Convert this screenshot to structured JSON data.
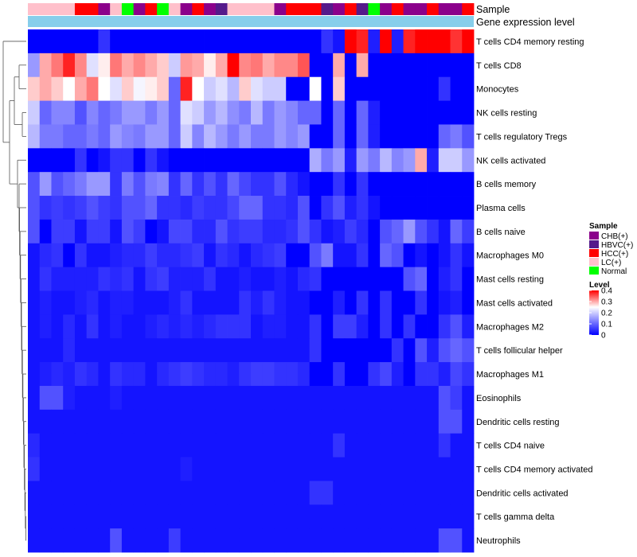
{
  "chart_data": {
    "type": "heatmap",
    "title": "",
    "annotation_tracks": [
      "Sample",
      "Gene expression level"
    ],
    "sample_groups": [
      {
        "name": "CHB(+)",
        "color": "#8B008B"
      },
      {
        "name": "HBVC(+)",
        "color": "#551A8B"
      },
      {
        "name": "HCC(+)",
        "color": "#FF0000"
      },
      {
        "name": "LC(+)",
        "color": "#FFC0CB"
      },
      {
        "name": "Normal",
        "color": "#00FF00"
      }
    ],
    "gene_expression_level_color": "#87CEEB",
    "columns_sample": [
      "LC(+)",
      "LC(+)",
      "LC(+)",
      "LC(+)",
      "HCC(+)",
      "HCC(+)",
      "CHB(+)",
      "LC(+)",
      "Normal",
      "CHB(+)",
      "HCC(+)",
      "Normal",
      "LC(+)",
      "CHB(+)",
      "HCC(+)",
      "CHB(+)",
      "HBVC(+)",
      "LC(+)",
      "LC(+)",
      "LC(+)",
      "LC(+)",
      "CHB(+)",
      "HCC(+)",
      "HCC(+)",
      "HCC(+)",
      "HBVC(+)",
      "CHB(+)",
      "HCC(+)",
      "HBVC(+)",
      "Normal",
      "CHB(+)",
      "HCC(+)",
      "CHB(+)",
      "CHB(+)",
      "HCC(+)",
      "CHB(+)",
      "CHB(+)",
      "HCC(+)"
    ],
    "rows": [
      "T cells CD4 memory resting",
      "T cells CD8",
      "Monocytes",
      "NK cells resting",
      "T cells regulatory  Tregs",
      "NK cells activated",
      "B cells memory",
      "Plasma cells",
      "B cells naive",
      "Macrophages M0",
      "Mast cells resting",
      "Mast cells activated",
      "Macrophages M2",
      "T cells follicular helper",
      "Macrophages M1",
      "Eosinophils",
      "Dendritic cells resting",
      "T cells CD4 naive",
      "T cells CD4 memory activated",
      "Dendritic cells activated",
      "T cells gamma delta",
      "Neutrophils"
    ],
    "values": [
      [
        0,
        0,
        0,
        0,
        0,
        0,
        0.05,
        0,
        0,
        0,
        0,
        0,
        0,
        0,
        0,
        0,
        0,
        0,
        0,
        0,
        0,
        0,
        0,
        0,
        0,
        0.05,
        0.02,
        0.4,
        0.38,
        0.03,
        0.4,
        0.03,
        0.38,
        0.4,
        0.4,
        0.4,
        0.37,
        0.4
      ],
      [
        0.15,
        0.3,
        0.33,
        0.38,
        0.32,
        0.22,
        0.26,
        0.33,
        0.3,
        0.32,
        0.3,
        0.28,
        0.2,
        0.31,
        0.3,
        0.26,
        0.3,
        0.4,
        0.32,
        0.33,
        0.3,
        0.32,
        0.32,
        0.35,
        0.0,
        0.0,
        0.3,
        0.0,
        0.3,
        0.0,
        0,
        0,
        0,
        0,
        0,
        0,
        0,
        0
      ],
      [
        0.28,
        0.3,
        0.28,
        0.25,
        0.3,
        0.33,
        0.25,
        0.22,
        0.28,
        0.24,
        0.26,
        0.28,
        0.1,
        0.38,
        0.25,
        0.2,
        0.22,
        0.18,
        0.28,
        0.22,
        0.2,
        0.2,
        0.0,
        0.0,
        0.25,
        0.0,
        0.28,
        0.0,
        0,
        0,
        0,
        0,
        0,
        0,
        0,
        0.05,
        0,
        0
      ],
      [
        0.2,
        0.1,
        0.13,
        0.13,
        0.08,
        0.13,
        0.1,
        0.12,
        0.15,
        0.15,
        0.12,
        0.15,
        0.1,
        0.22,
        0.2,
        0.15,
        0.18,
        0.14,
        0.12,
        0.18,
        0.12,
        0.15,
        0.13,
        0.1,
        0.1,
        0.0,
        0.1,
        0.0,
        0.1,
        0.03,
        0,
        0,
        0,
        0,
        0,
        0,
        0,
        0
      ],
      [
        0.18,
        0.12,
        0.12,
        0.1,
        0.1,
        0.12,
        0.1,
        0.15,
        0.13,
        0.12,
        0.15,
        0.15,
        0.1,
        0.2,
        0.13,
        0.18,
        0.15,
        0.12,
        0.15,
        0.12,
        0.12,
        0.15,
        0.13,
        0.15,
        0.0,
        0.0,
        0.1,
        0.0,
        0.1,
        0.03,
        0.0,
        0.0,
        0,
        0,
        0,
        0.1,
        0.12,
        0.08
      ],
      [
        0,
        0,
        0,
        0,
        0.05,
        0,
        0.02,
        0.05,
        0.05,
        0,
        0.05,
        0.02,
        0,
        0,
        0,
        0,
        0,
        0,
        0,
        0,
        0,
        0,
        0,
        0,
        0.17,
        0.12,
        0.15,
        0.03,
        0.15,
        0.12,
        0.18,
        0.13,
        0.15,
        0.3,
        0.03,
        0.2,
        0.2,
        0.15
      ],
      [
        0.08,
        0.15,
        0.08,
        0.1,
        0.12,
        0.15,
        0.15,
        0.05,
        0.12,
        0.08,
        0.12,
        0.13,
        0.05,
        0.1,
        0.05,
        0.08,
        0.05,
        0.1,
        0.07,
        0.05,
        0.05,
        0.08,
        0.04,
        0.02,
        0.0,
        0.0,
        0.05,
        0.0,
        0.05,
        0.0,
        0,
        0,
        0,
        0,
        0,
        0,
        0,
        0
      ],
      [
        0.08,
        0.05,
        0.06,
        0.05,
        0.06,
        0.08,
        0.06,
        0.05,
        0.08,
        0.08,
        0.1,
        0.05,
        0.05,
        0.04,
        0.06,
        0.05,
        0.05,
        0.07,
        0.1,
        0.1,
        0.05,
        0.05,
        0.04,
        0.08,
        0.0,
        0.05,
        0.08,
        0.03,
        0.05,
        0.02,
        0,
        0,
        0,
        0,
        0,
        0,
        0,
        0
      ],
      [
        0.08,
        0.0,
        0.06,
        0.06,
        0.02,
        0.06,
        0.06,
        0.02,
        0.08,
        0.06,
        0.0,
        0.02,
        0.07,
        0.07,
        0.04,
        0.04,
        0.08,
        0.05,
        0.06,
        0.06,
        0.04,
        0.04,
        0.05,
        0.08,
        0.05,
        0.02,
        0.03,
        0.06,
        0.04,
        0.0,
        0.08,
        0.1,
        0.15,
        0.08,
        0.05,
        0.02,
        0.1,
        0.06
      ],
      [
        0.02,
        0.04,
        0.05,
        0.0,
        0.05,
        0.02,
        0.02,
        0.03,
        0.04,
        0.04,
        0.06,
        0.04,
        0.04,
        0.05,
        0.06,
        0.02,
        0.05,
        0.04,
        0.02,
        0.04,
        0.05,
        0.06,
        0.0,
        0.0,
        0.08,
        0.12,
        0.02,
        0.02,
        0.05,
        0.0,
        0.1,
        0.08,
        0.0,
        0.02,
        0.0,
        0.02,
        0.05,
        0.02
      ],
      [
        0.02,
        0.05,
        0.03,
        0.03,
        0.03,
        0.03,
        0.05,
        0.04,
        0.05,
        0.02,
        0.05,
        0.06,
        0.03,
        0.03,
        0.03,
        0.05,
        0.02,
        0.02,
        0.03,
        0.02,
        0.02,
        0.03,
        0.02,
        0.04,
        0.05,
        0.0,
        0.0,
        0.0,
        0.0,
        0.0,
        0.0,
        0.0,
        0.08,
        0.1,
        0.0,
        0.03,
        0.05,
        0.0
      ],
      [
        0.02,
        0.03,
        0.02,
        0.02,
        0.03,
        0.04,
        0.02,
        0.03,
        0.03,
        0.02,
        0.02,
        0.02,
        0.03,
        0.05,
        0.02,
        0.02,
        0.02,
        0.02,
        0.05,
        0.03,
        0.05,
        0.03,
        0.02,
        0.02,
        0.0,
        0.0,
        0.03,
        0.0,
        0.05,
        0.0,
        0.05,
        0.0,
        0.0,
        0.05,
        0.0,
        0.02,
        0.03,
        0.0
      ],
      [
        0.02,
        0.03,
        0.02,
        0.04,
        0.02,
        0.05,
        0.02,
        0.03,
        0.02,
        0.02,
        0.03,
        0.04,
        0.03,
        0.04,
        0.03,
        0.04,
        0.05,
        0.05,
        0.05,
        0.02,
        0.03,
        0.03,
        0.02,
        0.02,
        0.05,
        0.0,
        0.06,
        0.06,
        0.03,
        0.0,
        0.05,
        0.0,
        0.05,
        0.0,
        0.0,
        0.05,
        0.08,
        0.03
      ],
      [
        0.02,
        0.02,
        0.02,
        0.04,
        0.02,
        0.02,
        0.02,
        0.02,
        0.02,
        0.02,
        0.02,
        0.02,
        0.02,
        0.02,
        0.02,
        0.02,
        0.02,
        0.02,
        0.02,
        0.02,
        0.02,
        0.02,
        0.02,
        0.02,
        0.05,
        0.0,
        0.0,
        0.0,
        0.0,
        0.0,
        0.0,
        0.05,
        0.0,
        0.08,
        0.03,
        0.08,
        0.1,
        0.08
      ],
      [
        0.02,
        0.03,
        0.04,
        0.03,
        0.05,
        0.04,
        0.02,
        0.05,
        0.04,
        0.04,
        0.02,
        0.04,
        0.05,
        0.06,
        0.05,
        0.04,
        0.04,
        0.03,
        0.05,
        0.06,
        0.06,
        0.05,
        0.05,
        0.04,
        0.0,
        0.0,
        0.05,
        0.0,
        0.0,
        0.05,
        0.07,
        0.03,
        0.0,
        0.05,
        0.05,
        0.03,
        0.07,
        0.05
      ],
      [
        0.02,
        0.08,
        0.08,
        0.03,
        0.02,
        0.02,
        0.02,
        0.03,
        0.02,
        0.02,
        0.02,
        0.02,
        0.02,
        0.02,
        0.02,
        0.02,
        0.02,
        0.02,
        0.02,
        0.02,
        0.02,
        0.02,
        0.02,
        0.02,
        0.02,
        0.02,
        0.02,
        0.02,
        0.02,
        0.02,
        0.02,
        0.02,
        0.02,
        0.02,
        0.02,
        0.08,
        0.06,
        0.02
      ],
      [
        0.02,
        0.02,
        0.02,
        0.02,
        0.02,
        0.02,
        0.02,
        0.02,
        0.02,
        0.02,
        0.02,
        0.02,
        0.02,
        0.02,
        0.02,
        0.02,
        0.02,
        0.02,
        0.02,
        0.02,
        0.02,
        0.02,
        0.02,
        0.02,
        0.02,
        0.02,
        0.02,
        0.02,
        0.02,
        0.02,
        0.02,
        0.02,
        0.02,
        0.02,
        0.02,
        0.08,
        0.08,
        0.02
      ],
      [
        0.04,
        0.02,
        0.02,
        0.02,
        0.02,
        0.02,
        0.02,
        0.02,
        0.02,
        0.02,
        0.02,
        0.02,
        0.02,
        0.02,
        0.02,
        0.02,
        0.02,
        0.02,
        0.02,
        0.02,
        0.02,
        0.02,
        0.02,
        0.02,
        0.02,
        0.02,
        0.05,
        0.02,
        0.02,
        0.02,
        0.02,
        0.02,
        0.02,
        0.02,
        0.02,
        0.05,
        0.02,
        0.02
      ],
      [
        0.05,
        0.02,
        0.02,
        0.02,
        0.02,
        0.02,
        0.02,
        0.02,
        0.02,
        0.02,
        0.02,
        0.02,
        0.02,
        0.03,
        0.02,
        0.02,
        0.02,
        0.02,
        0.02,
        0.02,
        0.02,
        0.02,
        0.02,
        0.02,
        0.02,
        0.02,
        0.02,
        0.02,
        0.02,
        0.02,
        0.02,
        0.02,
        0.02,
        0.02,
        0.02,
        0.02,
        0.02,
        0.02
      ],
      [
        0.02,
        0.02,
        0.02,
        0.02,
        0.02,
        0.02,
        0.02,
        0.02,
        0.02,
        0.02,
        0.02,
        0.02,
        0.02,
        0.02,
        0.02,
        0.02,
        0.02,
        0.02,
        0.02,
        0.02,
        0.02,
        0.02,
        0.02,
        0.02,
        0.05,
        0.05,
        0.02,
        0.02,
        0.02,
        0.02,
        0.02,
        0.02,
        0.02,
        0.02,
        0.02,
        0.02,
        0.02,
        0.02
      ],
      [
        0.02,
        0.02,
        0.02,
        0.02,
        0.02,
        0.02,
        0.02,
        0.02,
        0.02,
        0.02,
        0.02,
        0.02,
        0.02,
        0.02,
        0.02,
        0.02,
        0.02,
        0.02,
        0.02,
        0.02,
        0.02,
        0.02,
        0.02,
        0.02,
        0.02,
        0.02,
        0.02,
        0.02,
        0.02,
        0.02,
        0.02,
        0.02,
        0.02,
        0.02,
        0.02,
        0.02,
        0.02,
        0.02
      ],
      [
        0.02,
        0.02,
        0.02,
        0.02,
        0.02,
        0.02,
        0.02,
        0.08,
        0.02,
        0.02,
        0.02,
        0.02,
        0.06,
        0.02,
        0.02,
        0.02,
        0.02,
        0.02,
        0.02,
        0.02,
        0.02,
        0.02,
        0.02,
        0.02,
        0.02,
        0.02,
        0.02,
        0.02,
        0.02,
        0.02,
        0.02,
        0.02,
        0.02,
        0.02,
        0.02,
        0.08,
        0.08,
        0.02
      ]
    ],
    "color_scale": {
      "low": "#0000FF",
      "mid": "#FFFFFF",
      "high": "#FF0000",
      "min": 0,
      "mid_value": 0.25,
      "max": 0.4
    },
    "legend": {
      "sample_title": "Sample",
      "level_title": "Level",
      "level_ticks": [
        "0.4",
        "0.3",
        "0.2",
        "0.1",
        "0"
      ],
      "level_tick_values": [
        0.4,
        0.3,
        0.2,
        0.1,
        0
      ],
      "placement": "right"
    }
  }
}
